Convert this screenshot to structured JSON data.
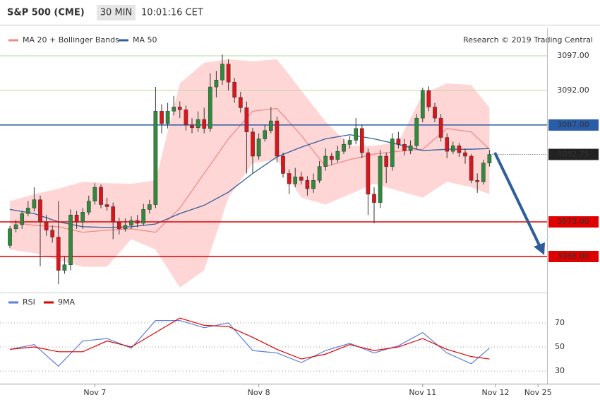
{
  "chart_data": [
    {
      "type": "candlestick",
      "title": "S&P 500 (CME)",
      "interval": "30 MIN",
      "time": "10:01:16 CET",
      "credit": "Research © 2019 Trading Central",
      "categories": [
        null,
        null,
        null,
        null,
        null,
        null,
        null,
        null,
        null,
        null,
        null,
        null,
        null,
        null,
        "Nov 7",
        null,
        null,
        null,
        null,
        null,
        null,
        null,
        null,
        null,
        null,
        null,
        null,
        null,
        null,
        null,
        null,
        null,
        null,
        null,
        null,
        null,
        null,
        null,
        null,
        null,
        null,
        "Nov 8",
        null,
        null,
        null,
        null,
        null,
        null,
        null,
        null,
        null,
        null,
        null,
        null,
        null,
        null,
        null,
        null,
        null,
        null,
        null,
        null,
        null,
        null,
        null,
        null,
        null,
        null,
        "Nov 11",
        null,
        null,
        null,
        null,
        null,
        null,
        null,
        null,
        null,
        null,
        null,
        "Nov 12",
        null,
        null,
        null,
        null,
        null,
        null,
        "Nov 25",
        null
      ],
      "open": [
        3069.6,
        3072.0,
        3072.6,
        3074.2,
        3075.0,
        3076.2,
        3073.0,
        3071.8,
        3070.8,
        3066.0,
        3066.8,
        3074.0,
        3073.0,
        3074.4,
        3076.0,
        3078.0,
        3075.5,
        3075.2,
        3073.0,
        3072.0,
        3072.5,
        3073.2,
        3072.8,
        3074.8,
        3075.5,
        3089.0,
        3087.2,
        3089.0,
        3089.6,
        3089.2,
        3087.0,
        3086.6,
        3087.8,
        3086.5,
        3092.5,
        3093.5,
        3095.8,
        3093.2,
        3091.0,
        3089.5,
        3086.0,
        3082.5,
        3085.0,
        3086.2,
        3087.6,
        3082.5,
        3080.0,
        3078.5,
        3079.5,
        3079.0,
        3077.8,
        3079.0,
        3081.0,
        3082.5,
        3082.0,
        3083.2,
        3084.2,
        3084.8,
        3086.5,
        3083.0,
        3077.0,
        3075.8,
        3082.5,
        3081.0,
        3085.0,
        3084.2,
        3083.3,
        3084.0,
        3088.0,
        3092.0,
        3089.6,
        3088.0,
        3085.2,
        3083.2,
        3084.0,
        3083.0,
        3082.5,
        3079.0,
        3078.8,
        3081.5,
        null,
        null,
        null,
        null,
        null,
        null,
        null,
        null,
        null
      ],
      "high": [
        3072.4,
        3073.3,
        3074.6,
        3076.0,
        3078.0,
        3076.8,
        3074.0,
        3072.5,
        3076.0,
        3068.0,
        3074.8,
        3074.6,
        3075.0,
        3076.8,
        3078.6,
        3078.4,
        3076.5,
        3075.8,
        3073.6,
        3073.5,
        3073.8,
        3074.0,
        3075.6,
        3076.2,
        3092.5,
        3090.0,
        3090.2,
        3091.2,
        3090.4,
        3089.8,
        3088.0,
        3089.0,
        3089.5,
        3094.5,
        3094.8,
        3097.2,
        3096.5,
        3093.8,
        3091.8,
        3090.4,
        3086.6,
        3085.8,
        3087.0,
        3089.6,
        3088.2,
        3083.0,
        3080.6,
        3080.8,
        3080.2,
        3079.6,
        3080.0,
        3081.8,
        3083.6,
        3083.0,
        3084.0,
        3085.0,
        3085.4,
        3088.0,
        3087.0,
        3083.6,
        3078.0,
        3083.4,
        3083.0,
        3085.8,
        3086.0,
        3085.0,
        3084.8,
        3088.6,
        3092.4,
        3092.6,
        3090.2,
        3088.6,
        3085.8,
        3084.6,
        3084.4,
        3083.6,
        3082.8,
        3080.0,
        3082.0,
        3083.4,
        null,
        null,
        null,
        null,
        null,
        null,
        null,
        null,
        null
      ],
      "low": [
        3069.2,
        3071.5,
        3072.0,
        3073.8,
        3074.5,
        3066.6,
        3071.0,
        3070.0,
        3064.0,
        3065.5,
        3066.0,
        3072.0,
        3072.0,
        3074.0,
        3075.5,
        3075.0,
        3074.6,
        3070.5,
        3071.2,
        3071.6,
        3072.0,
        3072.2,
        3072.5,
        3074.2,
        3075.0,
        3085.8,
        3086.5,
        3088.4,
        3088.0,
        3086.2,
        3085.8,
        3086.0,
        3085.8,
        3086.0,
        3091.0,
        3092.8,
        3092.0,
        3090.2,
        3088.8,
        3080.0,
        3080.0,
        3082.0,
        3084.6,
        3085.8,
        3081.6,
        3079.4,
        3077.0,
        3078.0,
        3078.4,
        3076.8,
        3077.2,
        3078.6,
        3080.4,
        3081.2,
        3081.6,
        3082.8,
        3083.6,
        3084.2,
        3082.2,
        3074.0,
        3072.8,
        3075.0,
        3078.6,
        3080.4,
        3083.6,
        3082.6,
        3082.8,
        3083.6,
        3087.4,
        3089.0,
        3087.4,
        3084.6,
        3082.2,
        3082.8,
        3082.4,
        3081.4,
        3078.6,
        3077.2,
        3078.4,
        3081.0,
        null,
        null,
        null,
        null,
        null,
        null,
        null,
        null,
        null
      ],
      "close": [
        3072.0,
        3072.6,
        3074.2,
        3075.0,
        3076.2,
        3073.0,
        3071.8,
        3070.8,
        3066.0,
        3066.8,
        3074.0,
        3073.0,
        3074.4,
        3076.0,
        3078.0,
        3075.5,
        3075.2,
        3073.0,
        3072.0,
        3072.5,
        3073.2,
        3072.8,
        3074.8,
        3075.5,
        3089.0,
        3087.2,
        3089.0,
        3089.6,
        3089.2,
        3087.0,
        3086.6,
        3087.8,
        3086.5,
        3092.5,
        3093.5,
        3095.8,
        3093.2,
        3091.0,
        3089.5,
        3086.0,
        3082.5,
        3085.0,
        3086.2,
        3087.6,
        3082.5,
        3080.0,
        3078.5,
        3079.5,
        3079.0,
        3077.8,
        3079.0,
        3081.0,
        3082.5,
        3082.0,
        3083.2,
        3084.2,
        3084.8,
        3086.5,
        3083.0,
        3077.0,
        3075.8,
        3082.5,
        3081.0,
        3085.0,
        3084.2,
        3083.3,
        3084.0,
        3088.0,
        3092.0,
        3089.6,
        3088.0,
        3085.2,
        3083.2,
        3084.0,
        3083.0,
        3082.5,
        3079.0,
        3078.8,
        3081.5,
        3082.75,
        null,
        null,
        null,
        null,
        null,
        null,
        null,
        null,
        null
      ],
      "up_color": "#2f8a3b",
      "down_color": "#d9161c",
      "series": [
        {
          "name": "MA 20 + Bollinger Bands",
          "color": "#f08a8a",
          "band_color": "#ffd6d6",
          "x": [
            0,
            4,
            8,
            12,
            16,
            20,
            24,
            28,
            32,
            36,
            40,
            44,
            48,
            52,
            56,
            60,
            64,
            68,
            72,
            76,
            79
          ],
          "values": [
            3073.0,
            3072.5,
            3072.3,
            3071.5,
            3071.8,
            3072.0,
            3071.5,
            3075.0,
            3080.0,
            3085.0,
            3089.0,
            3089.4,
            3085.5,
            3081.0,
            3082.0,
            3082.8,
            3083.2,
            3083.5,
            3086.5,
            3086.0,
            3083.5
          ],
          "upper": [
            3076.0,
            3077.0,
            3077.8,
            3078.8,
            3078.6,
            3078.5,
            3079.0,
            3093.0,
            3096.0,
            3096.5,
            3096.2,
            3096.5,
            3092.0,
            3087.5,
            3084.0,
            3084.0,
            3084.5,
            3091.5,
            3093.0,
            3092.8,
            3089.5
          ],
          "lower": [
            3069.0,
            3068.5,
            3067.5,
            3066.5,
            3066.5,
            3070.5,
            3069.0,
            3063.5,
            3066.0,
            3076.5,
            3081.5,
            3082.0,
            3076.5,
            3075.5,
            3077.0,
            3078.5,
            3077.5,
            3076.5,
            3078.8,
            3078.0,
            3077.0
          ]
        },
        {
          "name": "MA 50",
          "color": "#2f5f9e",
          "x": [
            0,
            4,
            8,
            12,
            16,
            20,
            24,
            28,
            32,
            36,
            40,
            44,
            48,
            52,
            56,
            60,
            64,
            68,
            72,
            76,
            79
          ],
          "values": [
            3074.8,
            3074.2,
            3073.0,
            3072.3,
            3072.2,
            3072.3,
            3072.7,
            3074.2,
            3075.4,
            3077.3,
            3080.0,
            3082.4,
            3083.8,
            3085.0,
            3085.6,
            3085.0,
            3084.2,
            3083.3,
            3083.5,
            3083.5,
            3083.6
          ]
        }
      ],
      "ylim": [
        3063.2,
        3098.43
      ],
      "levels": [
        {
          "value": 3097,
          "label": "3097.00",
          "color": "#5c9e22",
          "line_color": "#b7d89a",
          "boxed": false,
          "line": "solid"
        },
        {
          "value": 3092,
          "label": "3092.00",
          "color": "#5c9e22",
          "line_color": "#b7d89a",
          "boxed": false,
          "line": "solid"
        },
        {
          "value": 3087,
          "label": "3087.00",
          "color": "#2a5ca8",
          "line_color": "#2a5ca8",
          "boxed": true,
          "line": "solid"
        },
        {
          "value": 3082.75,
          "label": "3082.75",
          "color": "#222222",
          "line_color": "#444444",
          "boxed": true,
          "line": "dotted"
        },
        {
          "value": 3073,
          "label": "3073.00",
          "color": "#e00000",
          "line_color": "#e00000",
          "boxed": true,
          "line": "solid"
        },
        {
          "value": 3068,
          "label": "3068.00",
          "color": "#e00000",
          "line_color": "#e00000",
          "boxed": true,
          "line": "solid"
        }
      ]
    },
    {
      "type": "line",
      "x": [
        0,
        4,
        8,
        12,
        16,
        20,
        24,
        28,
        32,
        36,
        40,
        44,
        48,
        52,
        56,
        60,
        64,
        68,
        72,
        76,
        79
      ],
      "series": [
        {
          "name": "RSI",
          "color": "#5b7fdc",
          "values": [
            48,
            52,
            34,
            55,
            57,
            49,
            72,
            72,
            66,
            70,
            47,
            45,
            37,
            47,
            53,
            45,
            51,
            62,
            45,
            36,
            49
          ]
        },
        {
          "name": "9MA",
          "color": "#e00000",
          "values": [
            48,
            50,
            46,
            46,
            55,
            50,
            62,
            74,
            68,
            67,
            58,
            48,
            40,
            44,
            52,
            47,
            50,
            57,
            48,
            42,
            40
          ]
        }
      ],
      "ylim": [
        22.4,
        88.8
      ],
      "yticks": [
        30,
        50,
        70
      ],
      "grid": true
    }
  ]
}
